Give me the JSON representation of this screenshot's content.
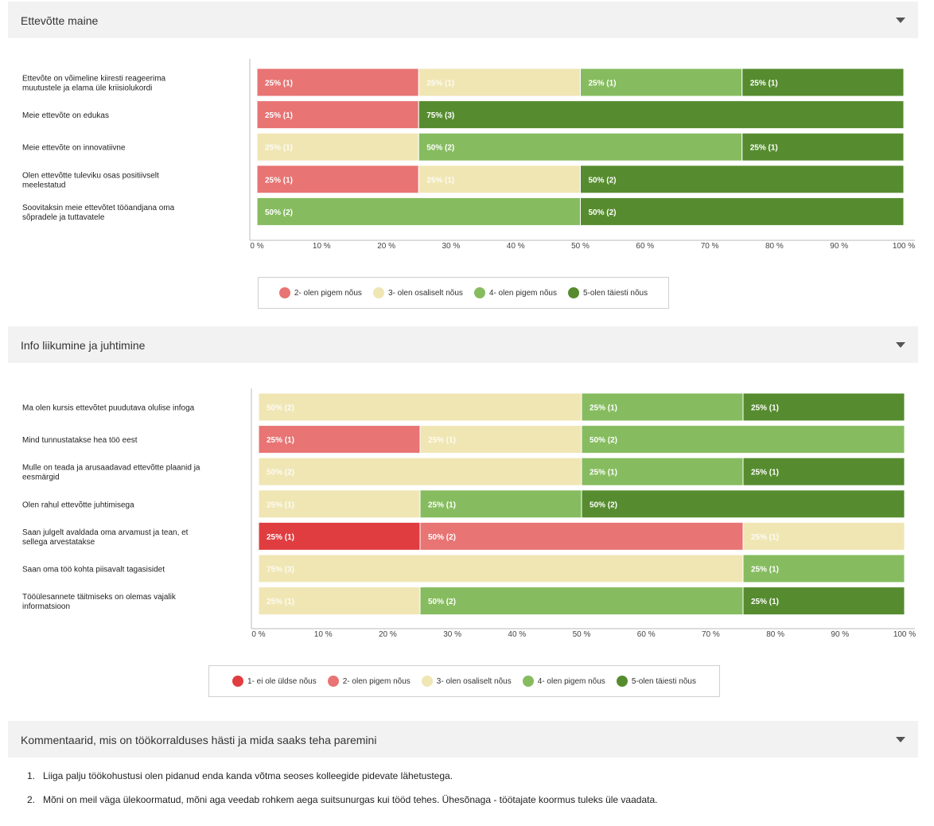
{
  "sections": [
    {
      "title": "Ettevõtte maine"
    },
    {
      "title": "Info liikumine ja juhtimine"
    },
    {
      "title": "Kommentaarid, mis on töökorralduses hästi ja mida saaks teha paremini"
    }
  ],
  "colors": {
    "c1": "#e03d40",
    "c2": "#e87474",
    "c3": "#f0e6b4",
    "c4": "#86bc5f",
    "c5": "#568c2f"
  },
  "chart_data": [
    {
      "type": "bar",
      "orientation": "horizontal",
      "stacked": true,
      "xlim": [
        0,
        100
      ],
      "xticks": [
        "0 %",
        "10 %",
        "20 %",
        "30 %",
        "40 %",
        "50 %",
        "60 %",
        "70 %",
        "80 %",
        "90 %",
        "100 %"
      ],
      "legend_position": "bottom",
      "legend": [
        {
          "key": "c2",
          "label": "2- olen pigem nõus"
        },
        {
          "key": "c3",
          "label": "3- olen osaliselt nõus"
        },
        {
          "key": "c4",
          "label": "4- olen pigem nõus"
        },
        {
          "key": "c5",
          "label": "5-olen täiesti nõus"
        }
      ],
      "rows": [
        {
          "label": [
            "Ettevõte on võimeline kiiresti reageerima",
            "muutustele ja elama üle kriisiolukordi"
          ],
          "segments": [
            {
              "key": "c2",
              "value": 25,
              "text": "25% (1)"
            },
            {
              "key": "c3",
              "value": 25,
              "text": "25% (1)"
            },
            {
              "key": "c4",
              "value": 25,
              "text": "25% (1)"
            },
            {
              "key": "c5",
              "value": 25,
              "text": "25% (1)"
            }
          ]
        },
        {
          "label": [
            "Meie ettevõte on edukas"
          ],
          "segments": [
            {
              "key": "c2",
              "value": 25,
              "text": "25% (1)"
            },
            {
              "key": "c5",
              "value": 75,
              "text": "75% (3)"
            }
          ]
        },
        {
          "label": [
            "Meie ettevõte on innovatiivne"
          ],
          "segments": [
            {
              "key": "c3",
              "value": 25,
              "text": "25% (1)"
            },
            {
              "key": "c4",
              "value": 50,
              "text": "50% (2)"
            },
            {
              "key": "c5",
              "value": 25,
              "text": "25% (1)"
            }
          ]
        },
        {
          "label": [
            "Olen ettevõtte tuleviku osas positiivselt",
            "meelestatud"
          ],
          "segments": [
            {
              "key": "c2",
              "value": 25,
              "text": "25% (1)"
            },
            {
              "key": "c3",
              "value": 25,
              "text": "25% (1)"
            },
            {
              "key": "c5",
              "value": 50,
              "text": "50% (2)"
            }
          ]
        },
        {
          "label": [
            "Soovitaksin meie ettevõtet tööandjana oma",
            "sõpradele ja tuttavatele"
          ],
          "segments": [
            {
              "key": "c4",
              "value": 50,
              "text": "50% (2)"
            },
            {
              "key": "c5",
              "value": 50,
              "text": "50% (2)"
            }
          ]
        }
      ]
    },
    {
      "type": "bar",
      "orientation": "horizontal",
      "stacked": true,
      "xlim": [
        0,
        100
      ],
      "xticks": [
        "0 %",
        "10 %",
        "20 %",
        "30 %",
        "40 %",
        "50 %",
        "60 %",
        "70 %",
        "80 %",
        "90 %",
        "100 %"
      ],
      "legend_position": "bottom",
      "legend": [
        {
          "key": "c1",
          "label": "1- ei ole üldse nõus"
        },
        {
          "key": "c2",
          "label": "2- olen pigem nõus"
        },
        {
          "key": "c3",
          "label": "3- olen osaliselt nõus"
        },
        {
          "key": "c4",
          "label": "4- olen pigem nõus"
        },
        {
          "key": "c5",
          "label": "5-olen täiesti nõus"
        }
      ],
      "rows": [
        {
          "label": [
            "Ma olen kursis ettevõtet puudutava olulise infoga"
          ],
          "segments": [
            {
              "key": "c3",
              "value": 50,
              "text": "50% (2)"
            },
            {
              "key": "c4",
              "value": 25,
              "text": "25% (1)"
            },
            {
              "key": "c5",
              "value": 25,
              "text": "25% (1)"
            }
          ]
        },
        {
          "label": [
            "Mind tunnustatakse hea töö eest"
          ],
          "segments": [
            {
              "key": "c2",
              "value": 25,
              "text": "25% (1)"
            },
            {
              "key": "c3",
              "value": 25,
              "text": "25% (1)"
            },
            {
              "key": "c4",
              "value": 50,
              "text": "50% (2)"
            }
          ]
        },
        {
          "label": [
            "Mulle on teada ja arusaadavad ettevõtte plaanid ja",
            "eesmärgid"
          ],
          "segments": [
            {
              "key": "c3",
              "value": 50,
              "text": "50% (2)"
            },
            {
              "key": "c4",
              "value": 25,
              "text": "25% (1)"
            },
            {
              "key": "c5",
              "value": 25,
              "text": "25% (1)"
            }
          ]
        },
        {
          "label": [
            "Olen rahul ettevõtte juhtimisega"
          ],
          "segments": [
            {
              "key": "c3",
              "value": 25,
              "text": "25% (1)"
            },
            {
              "key": "c4",
              "value": 25,
              "text": "25% (1)"
            },
            {
              "key": "c5",
              "value": 50,
              "text": "50% (2)"
            }
          ]
        },
        {
          "label": [
            "Saan julgelt avaldada oma arvamust ja tean, et",
            "sellega arvestatakse"
          ],
          "segments": [
            {
              "key": "c1",
              "value": 25,
              "text": "25% (1)"
            },
            {
              "key": "c2",
              "value": 50,
              "text": "50% (2)"
            },
            {
              "key": "c3",
              "value": 25,
              "text": "25% (1)"
            }
          ]
        },
        {
          "label": [
            "Saan oma töö kohta piisavalt tagasisidet"
          ],
          "segments": [
            {
              "key": "c3",
              "value": 75,
              "text": "75% (3)"
            },
            {
              "key": "c4",
              "value": 25,
              "text": "25% (1)"
            }
          ]
        },
        {
          "label": [
            "Tööülesannete täitmiseks on olemas vajalik",
            "informatsioon"
          ],
          "segments": [
            {
              "key": "c3",
              "value": 25,
              "text": "25% (1)"
            },
            {
              "key": "c4",
              "value": 50,
              "text": "50% (2)"
            },
            {
              "key": "c5",
              "value": 25,
              "text": "25% (1)"
            }
          ]
        }
      ]
    }
  ],
  "comments": [
    {
      "num": "1.",
      "text": "Liiga palju töökohustusi olen pidanud enda kanda võtma seoses kolleegide pidevate lähetustega."
    },
    {
      "num": "2.",
      "text": "Mõni on meil väga ülekoormatud, mõni aga veedab rohkem aega suitsunurgas kui tööd tehes. Ühesõnaga - töötajate koormus tuleks üle vaadata."
    }
  ]
}
